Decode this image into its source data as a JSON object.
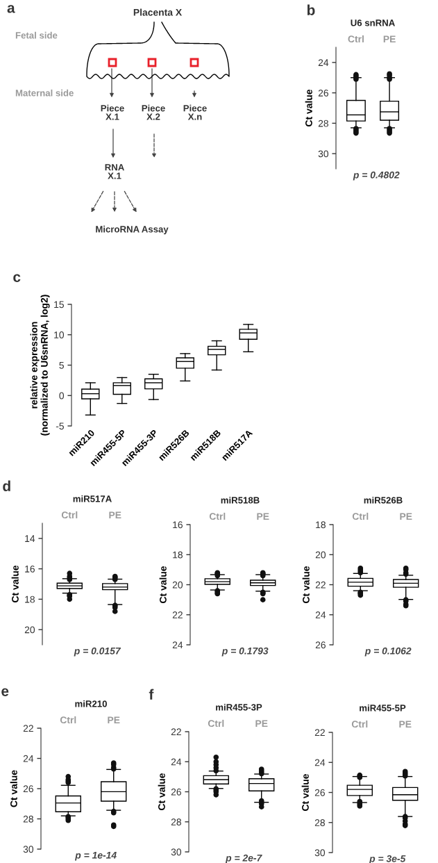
{
  "chart_data": [
    {
      "type": "other",
      "title": "Placenta X",
      "annotations": [
        "a",
        "Fetal side",
        "Maternal side",
        "Piece\nX.1",
        "Piece\nX.2",
        "Piece\nX.n",
        "RNA\nX.1",
        "MicroRNA Assay"
      ]
    },
    {
      "type": "box",
      "title": "U6 snRNA",
      "ylabel": "Ct value",
      "categories": [
        "Ctrl",
        "PE"
      ],
      "ylim": [
        31,
        23
      ],
      "yticks": [
        24,
        26,
        28,
        30
      ],
      "annotations": [
        "b",
        "p = 0.4802"
      ],
      "boxes": [
        {
          "low": 25.0,
          "q1": 26.5,
          "median": 27.45,
          "q3": 27.85,
          "high": 28.3,
          "outliers": [
            24.8,
            24.9,
            25.0,
            25.1,
            28.35,
            28.45,
            28.55,
            28.65
          ]
        },
        {
          "low": 25.0,
          "q1": 26.55,
          "median": 27.25,
          "q3": 27.8,
          "high": 28.3,
          "outliers": [
            24.75,
            24.85,
            25.0,
            25.1,
            28.35,
            28.45,
            28.55,
            28.65
          ]
        }
      ]
    },
    {
      "type": "box",
      "ylabel": "relative expression\n(normalized to U6snRNA, log2)",
      "categories": [
        "miR210",
        "miR455-5P",
        "miR455-3P",
        "miR526B",
        "miR518B",
        "miR517A"
      ],
      "ylim": [
        -5,
        15
      ],
      "yticks": [
        -5,
        0,
        5,
        10,
        15
      ],
      "annotations": [
        "c"
      ],
      "boxes": [
        {
          "low": -3.2,
          "q1": -0.55,
          "median": 0.3,
          "q3": 1.05,
          "high": 2.1
        },
        {
          "low": -1.3,
          "q1": 0.2,
          "median": 1.65,
          "q3": 2.1,
          "high": 2.95
        },
        {
          "low": -0.65,
          "q1": 1.1,
          "median": 2.1,
          "q3": 2.75,
          "high": 3.5
        },
        {
          "low": 2.4,
          "q1": 4.5,
          "median": 5.6,
          "q3": 6.2,
          "high": 6.9
        },
        {
          "low": 4.2,
          "q1": 6.7,
          "median": 7.6,
          "q3": 8.1,
          "high": 9.0
        },
        {
          "low": 7.2,
          "q1": 9.25,
          "median": 10.3,
          "q3": 10.9,
          "high": 11.7
        }
      ]
    },
    {
      "type": "box",
      "title": "miR517A",
      "ylabel": "Ct value",
      "categories": [
        "Ctrl",
        "PE"
      ],
      "ylim": [
        21,
        13
      ],
      "yticks": [
        14,
        16,
        18,
        20
      ],
      "annotations": [
        "d",
        "p = 0.0157"
      ],
      "boxes": [
        {
          "low": 16.65,
          "q1": 16.94,
          "median": 17.12,
          "q3": 17.3,
          "high": 17.6,
          "outliers": [
            16.3,
            16.5,
            16.6,
            16.7,
            17.7,
            17.75,
            17.8,
            18.0
          ]
        },
        {
          "low": 16.68,
          "q1": 16.97,
          "median": 17.2,
          "q3": 17.37,
          "high": 18.35,
          "outliers": [
            16.5,
            16.55,
            16.6,
            16.7,
            18.4,
            18.45,
            18.55,
            18.8
          ]
        }
      ]
    },
    {
      "type": "box",
      "title": "miR518B",
      "ylabel": "Ct value",
      "categories": [
        "Ctrl",
        "PE"
      ],
      "ylim": [
        24,
        16
      ],
      "yticks": [
        16,
        18,
        20,
        22,
        24
      ],
      "annotations": [
        "p = 0.1793"
      ],
      "boxes": [
        {
          "low": 19.33,
          "q1": 19.6,
          "median": 19.8,
          "q3": 19.98,
          "high": 20.35,
          "outliers": [
            19.2,
            19.25,
            19.3,
            19.4,
            20.4,
            20.45,
            20.55,
            20.6
          ]
        },
        {
          "low": 19.33,
          "q1": 19.7,
          "median": 19.87,
          "q3": 20.05,
          "high": 20.43,
          "outliers": [
            19.2,
            19.25,
            19.3,
            19.4,
            20.5,
            20.55,
            20.6,
            21.0
          ]
        }
      ]
    },
    {
      "type": "box",
      "title": "miR526B",
      "ylabel": "Ct value",
      "categories": [
        "Ctrl",
        "PE"
      ],
      "ylim": [
        26,
        18
      ],
      "yticks": [
        18,
        20,
        22,
        24,
        26
      ],
      "annotations": [
        "p = 0.1062"
      ],
      "boxes": [
        {
          "low": 21.25,
          "q1": 21.58,
          "median": 21.83,
          "q3": 22.1,
          "high": 22.4,
          "outliers": [
            20.9,
            21.0,
            21.1,
            21.2,
            22.5,
            22.55,
            22.6,
            22.7
          ]
        },
        {
          "low": 21.37,
          "q1": 21.65,
          "median": 21.9,
          "q3": 22.17,
          "high": 22.98,
          "outliers": [
            20.9,
            21.0,
            21.2,
            21.3,
            23.0,
            23.1,
            23.3,
            23.4
          ]
        }
      ]
    },
    {
      "type": "box",
      "title": "miR210",
      "ylabel": "Ct value",
      "categories": [
        "Ctrl",
        "PE"
      ],
      "ylim": [
        30,
        22
      ],
      "yticks": [
        22,
        24,
        26,
        28,
        30
      ],
      "annotations": [
        "e",
        "p = 1e-14"
      ],
      "boxes": [
        {
          "low": 25.78,
          "q1": 26.48,
          "median": 26.95,
          "q3": 27.53,
          "high": 27.8,
          "outliers": [
            25.2,
            25.4,
            25.5,
            25.6,
            27.85,
            27.9,
            28.0,
            28.1
          ]
        },
        {
          "low": 24.73,
          "q1": 25.54,
          "median": 26.2,
          "q3": 26.83,
          "high": 27.43,
          "outliers": [
            24.3,
            24.4,
            24.6,
            24.7,
            27.5,
            27.6,
            28.4,
            28.5
          ]
        }
      ]
    },
    {
      "type": "box",
      "title": "miR455-3P",
      "ylabel": "Ct value",
      "categories": [
        "Ctrl",
        "PE"
      ],
      "ylim": [
        30,
        22
      ],
      "yticks": [
        22,
        24,
        26,
        28,
        30
      ],
      "annotations": [
        "f",
        "p = 2e-7"
      ],
      "boxes": [
        {
          "low": 24.62,
          "q1": 24.93,
          "median": 25.19,
          "q3": 25.48,
          "high": 25.78,
          "outliers": [
            23.7,
            24.0,
            24.2,
            24.4,
            24.6,
            25.8,
            25.9,
            26.0,
            26.2
          ]
        },
        {
          "low": 24.82,
          "q1": 25.13,
          "median": 25.45,
          "q3": 25.94,
          "high": 26.7,
          "outliers": [
            24.5,
            24.6,
            24.7,
            24.8,
            26.6,
            26.7,
            26.8,
            27.0
          ]
        }
      ]
    },
    {
      "type": "box",
      "title": "miR455-5P",
      "ylabel": "Ct value",
      "categories": [
        "Ctrl",
        "PE"
      ],
      "ylim": [
        30,
        22
      ],
      "yticks": [
        22,
        24,
        26,
        28,
        30
      ],
      "annotations": [
        "p = 3e-5"
      ],
      "boxes": [
        {
          "low": 24.94,
          "q1": 25.52,
          "median": 25.8,
          "q3": 26.2,
          "high": 26.67,
          "outliers": [
            24.85,
            24.9,
            25.0,
            26.6,
            26.7,
            26.8,
            26.9
          ]
        },
        {
          "low": 24.94,
          "q1": 25.67,
          "median": 26.15,
          "q3": 26.52,
          "high": 27.6,
          "outliers": [
            24.6,
            24.7,
            24.8,
            24.9,
            27.6,
            27.7,
            27.9,
            28.1,
            28.2
          ]
        }
      ]
    }
  ]
}
